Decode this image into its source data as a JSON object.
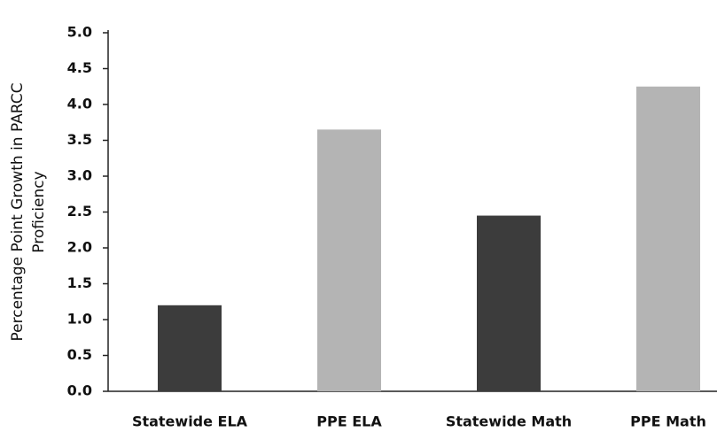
{
  "chart_data": {
    "type": "bar",
    "ylabel": [
      "Percentage Point Growth in PARCC",
      "Proficiency"
    ],
    "categories": [
      "Statewide ELA",
      "PPE ELA",
      "Statewide Math",
      "PPE Math"
    ],
    "values": [
      1.2,
      3.65,
      2.45,
      4.25
    ],
    "colors": [
      "#3c3c3c",
      "#b4b4b4",
      "#3c3c3c",
      "#b4b4b4"
    ],
    "ylim": [
      0,
      5
    ],
    "yticks": [
      {
        "value": 0,
        "label": "0.0"
      },
      {
        "value": 0.5,
        "label": "0.5"
      },
      {
        "value": 1,
        "label": "1.0"
      },
      {
        "value": 1.5,
        "label": "1.5"
      },
      {
        "value": 2,
        "label": "2.0"
      },
      {
        "value": 2.5,
        "label": "2.5"
      },
      {
        "value": 3,
        "label": "3.0"
      },
      {
        "value": 3.5,
        "label": "3.5"
      },
      {
        "value": 4,
        "label": "4.0"
      },
      {
        "value": 4.5,
        "label": "4.5"
      },
      {
        "value": 5,
        "label": "5.0"
      }
    ],
    "grid": false
  }
}
